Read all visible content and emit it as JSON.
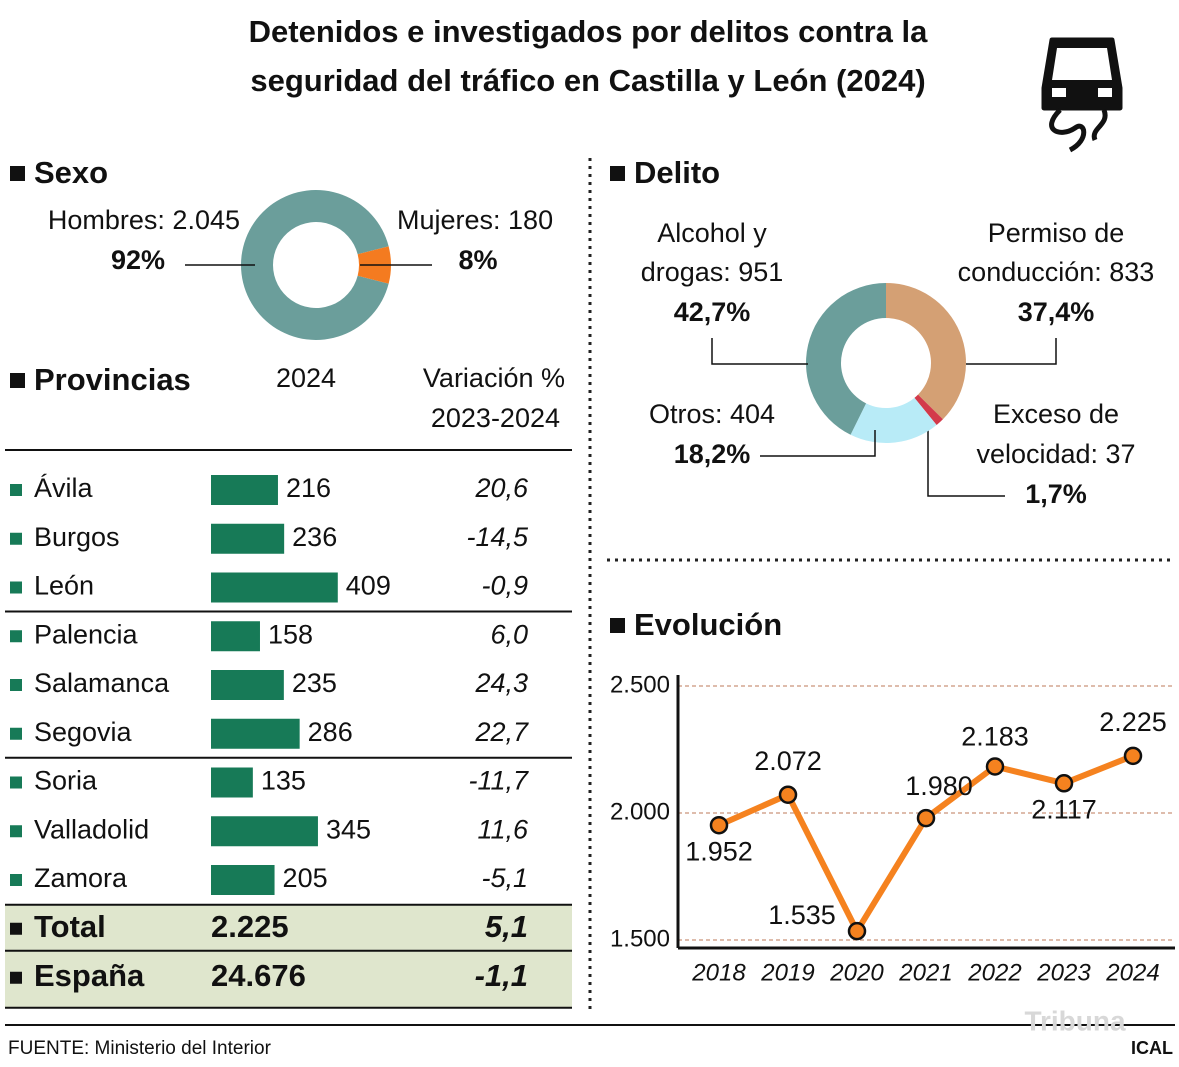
{
  "title": [
    "Detenidos e investigados por delitos contra la",
    "seguridad del tráfico en Castilla y León (2024)"
  ],
  "source": "FUENTE: Ministerio del Interior",
  "logo": "Tribuna",
  "credit": "ICAL",
  "chart_data": [
    {
      "type": "donut",
      "title": "Sexo",
      "labels": [
        "Hombres: 2.045",
        "Mujeres: 180"
      ],
      "values": [
        92,
        8
      ],
      "value_labels": [
        "92%",
        "8%"
      ],
      "colors": [
        "#6b9e9b",
        "#f47b20"
      ],
      "center_label": "2024"
    },
    {
      "type": "table-bar",
      "title": "Provincias",
      "columns": [
        [
          "Variación %",
          "2023-2024"
        ]
      ],
      "categories": [
        "Ávila",
        "Burgos",
        "León",
        "Palencia",
        "Salamanca",
        "Segovia",
        "Soria",
        "Valladolid",
        "Zamora"
      ],
      "values": [
        216,
        236,
        409,
        158,
        235,
        286,
        135,
        345,
        205
      ],
      "color": "#177a57",
      "variation": [
        "20,6",
        "-14,5",
        "-0,9",
        "6,0",
        "24,3",
        "22,7",
        "-11,7",
        "11,6",
        "-5,1"
      ],
      "totals": {
        "categories": [
          "Total",
          "España"
        ],
        "values": [
          "2.225",
          "24.676"
        ],
        "variation": [
          "5,1",
          "-1,1"
        ]
      }
    },
    {
      "type": "donut",
      "title": "Delito",
      "label_lines": [
        [
          "Permiso de",
          "conducción: 833"
        ],
        [
          "Exceso de",
          "velocidad: 37"
        ],
        [
          "Otros: 404"
        ],
        [
          "Alcohol y",
          "drogas: 951"
        ]
      ],
      "values": [
        37.4,
        1.7,
        18.2,
        42.7
      ],
      "value_labels": [
        "37,4%",
        "1,7%",
        "18,2%",
        "42,7%"
      ],
      "colors": [
        "#d4a074",
        "#d33a4a",
        "#b8ebf7",
        "#6b9e9b"
      ]
    },
    {
      "type": "line",
      "title": "Evolución",
      "categories": [
        "2018",
        "2019",
        "2020",
        "2021",
        "2022",
        "2023",
        "2024"
      ],
      "values": [
        1952,
        2072,
        1535,
        1980,
        2183,
        2117,
        2225
      ],
      "value_labels": [
        "1.952",
        "2.072",
        "1.535",
        "1.980",
        "2.183",
        "2.117",
        "2.225"
      ],
      "color": "#f5821f",
      "ylim": [
        1500,
        2500
      ],
      "yticks": [
        {
          "value": 1500,
          "label": "1.500"
        },
        {
          "value": 2000,
          "label": "2.000"
        },
        {
          "value": 2500,
          "label": "2.500"
        }
      ],
      "grid": true
    }
  ]
}
